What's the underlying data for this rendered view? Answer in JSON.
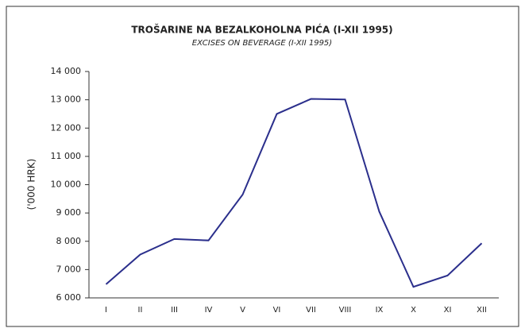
{
  "chart_data": {
    "type": "line",
    "title": "TROŠARINE NA BEZALKOHOLNA PIĆA (I-XII 1995)",
    "subtitle": "EXCISES ON BEVERAGE (I-XII 1995)",
    "y_label": "('000 HRK)",
    "categories": [
      "I",
      "II",
      "III",
      "IV",
      "V",
      "VI",
      "VII",
      "VIII",
      "IX",
      "X",
      "XI",
      "XII"
    ],
    "series": [
      {
        "name": "Trošarine",
        "color": "#2b2f8c",
        "values": [
          6480,
          7530,
          8080,
          8030,
          9650,
          12500,
          13030,
          13010,
          9050,
          6390,
          6790,
          7930
        ]
      }
    ],
    "ylim": [
      6000,
      14000
    ],
    "yticks": [
      {
        "value": 6000,
        "label": "6 000"
      },
      {
        "value": 7000,
        "label": "7 000"
      },
      {
        "value": 8000,
        "label": "8 000"
      },
      {
        "value": 9000,
        "label": "9 000"
      },
      {
        "value": 10000,
        "label": "10 000"
      },
      {
        "value": 11000,
        "label": "11 000"
      },
      {
        "value": 12000,
        "label": "12 000"
      },
      {
        "value": 13000,
        "label": "13 000"
      },
      {
        "value": 14000,
        "label": "14 000"
      }
    ],
    "grid": false,
    "legend": false
  }
}
